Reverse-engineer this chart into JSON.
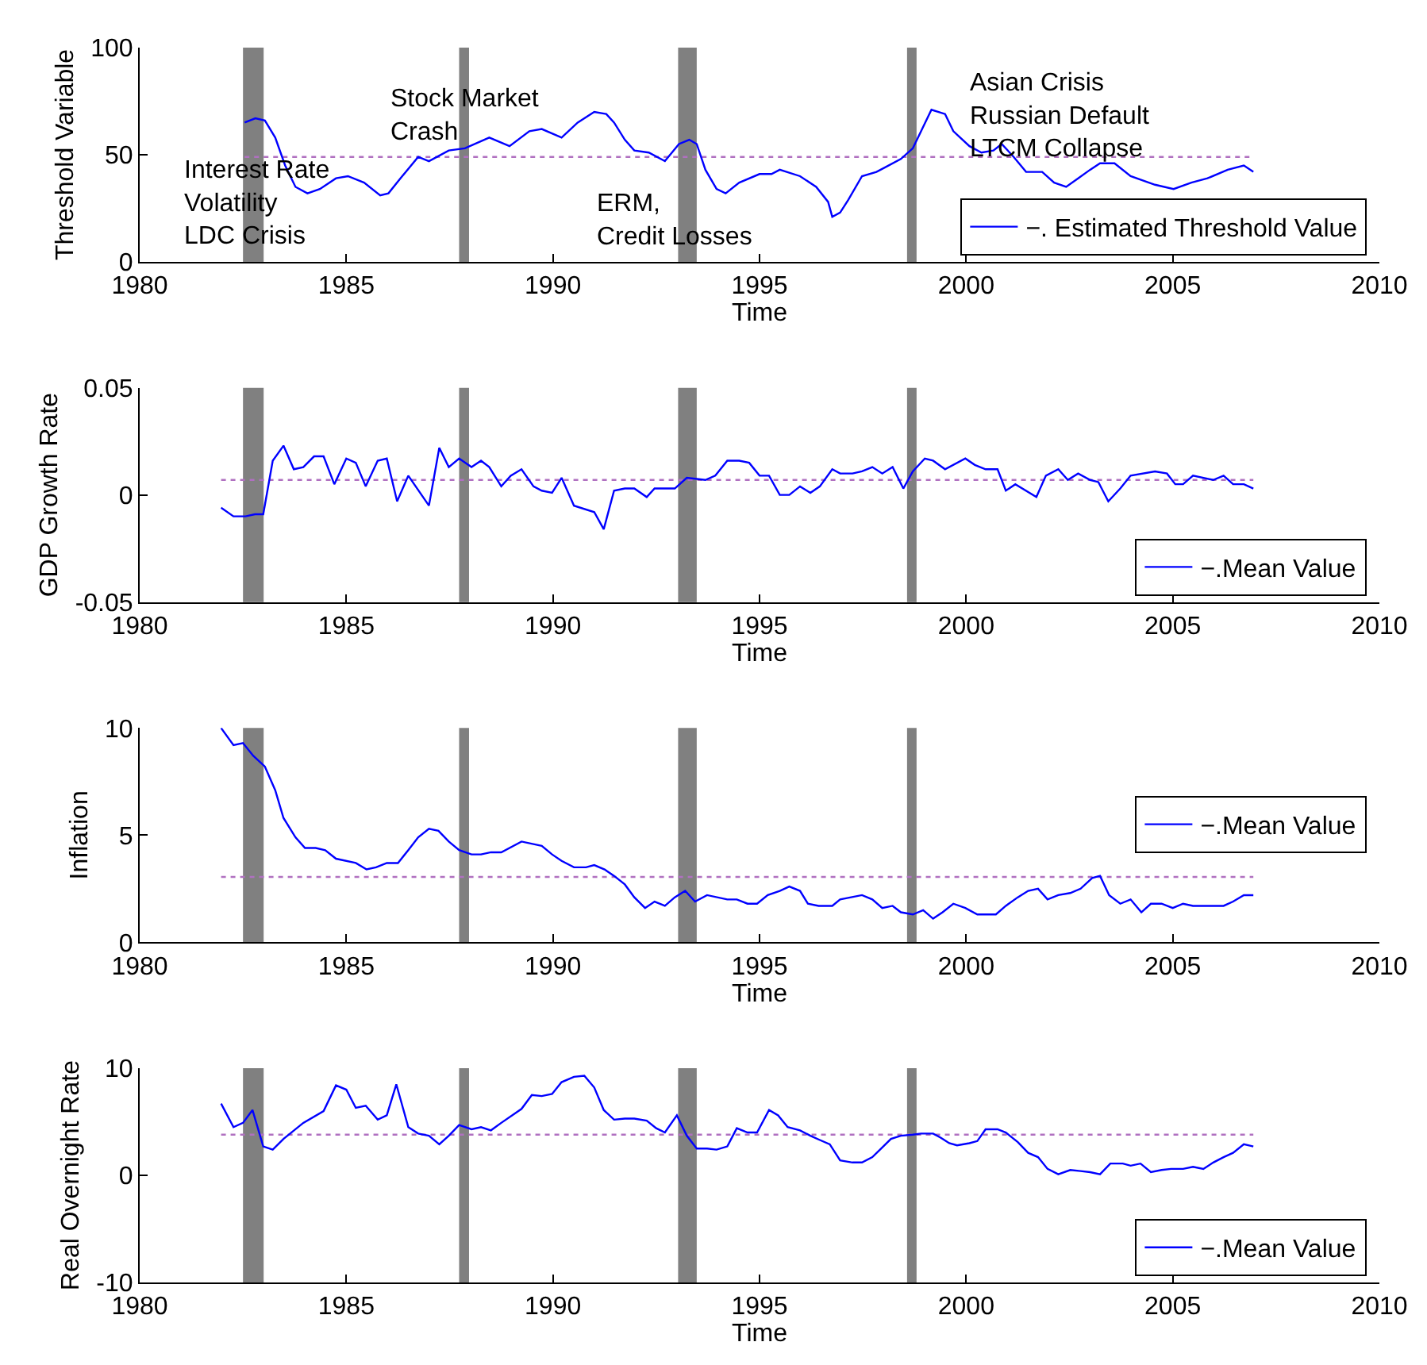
{
  "chart_data": [
    {
      "type": "line",
      "xlabel": "Time",
      "ylabel": "Threshold Variable",
      "xlim": [
        1980,
        2010
      ],
      "xticks": [
        1980,
        1985,
        1990,
        1995,
        2000,
        2005,
        2010
      ],
      "ylim": [
        0,
        100
      ],
      "yticks": [
        0,
        50,
        100
      ],
      "grid": false,
      "legend": "bottom right",
      "line_style": "solid",
      "series": [
        {
          "name": "−. Estimated Threshold Value",
          "color": "#0000ff",
          "x": [
            1982.54,
            1982.8,
            1983.03,
            1983.28,
            1983.52,
            1983.77,
            1984.06,
            1984.36,
            1984.75,
            1985.04,
            1985.43,
            1985.82,
            1986.02,
            1986.31,
            1986.74,
            1987.0,
            1987.48,
            1987.87,
            1988.46,
            1988.95,
            1989.43,
            1989.73,
            1990.21,
            1990.6,
            1991.0,
            1991.29,
            1991.48,
            1991.74,
            1991.97,
            1992.32,
            1992.71,
            1993.05,
            1993.3,
            1993.48,
            1993.69,
            1993.96,
            1994.18,
            1994.51,
            1995.0,
            1995.29,
            1995.49,
            1995.98,
            1996.37,
            1996.66,
            1996.76,
            1996.95,
            1997.15,
            1997.48,
            1997.83,
            1998.03,
            1998.42,
            1998.71,
            1998.91,
            1999.16,
            1999.49,
            1999.69,
            2000.08,
            2000.37,
            2000.66,
            2000.86,
            2001.15,
            2001.45,
            2001.84,
            2002.13,
            2002.42,
            2002.71,
            2003.0,
            2003.24,
            2003.59,
            2003.98,
            2004.57,
            2005.02,
            2005.45,
            2005.84,
            2006.33,
            2006.72,
            2006.95
          ],
          "values": [
            65,
            67,
            66,
            58,
            45,
            35,
            32,
            34,
            39,
            40,
            37,
            31,
            32,
            39,
            49,
            47,
            52,
            53,
            58,
            54,
            61,
            62,
            58,
            65,
            70,
            69,
            65,
            57,
            52,
            51,
            47,
            55,
            57,
            55,
            43,
            34,
            32,
            37,
            41,
            41,
            43,
            40,
            35,
            28,
            21,
            23,
            29,
            40,
            42,
            44,
            48,
            53,
            61,
            71,
            69,
            61,
            54,
            51,
            52,
            55,
            49,
            42,
            42,
            37,
            35,
            39,
            43,
            46,
            46,
            40,
            36,
            34,
            37,
            39,
            43,
            45,
            42
          ]
        }
      ],
      "ref_lines": [
        {
          "axis": "y",
          "value": 49,
          "color": "#b070c0",
          "line_style": "dotted"
        }
      ],
      "bands": [
        {
          "axis": "x",
          "from": 1982.5,
          "to": 1983.0,
          "color": "#808080"
        },
        {
          "axis": "x",
          "from": 1987.73,
          "to": 1987.97,
          "color": "#808080"
        },
        {
          "axis": "x",
          "from": 1993.03,
          "to": 1993.48,
          "color": "#808080"
        },
        {
          "axis": "x",
          "from": 1998.57,
          "to": 1998.8,
          "color": "#808080"
        }
      ],
      "annotations": [
        "Interest Rate\nVolatility\nLDC Crisis",
        "Stock Market\nCrash",
        "ERM,\nCredit Losses",
        "Asian Crisis\nRussian Default\nLTCM Collapse"
      ]
    },
    {
      "type": "line",
      "xlabel": "Time",
      "ylabel": "GDP Growth Rate",
      "xlim": [
        1980,
        2010
      ],
      "xticks": [
        1980,
        1985,
        1990,
        1995,
        2000,
        2005,
        2010
      ],
      "ylim": [
        -0.05,
        0.05
      ],
      "yticks": [
        -0.05,
        0,
        0.05
      ],
      "grid": false,
      "legend": "bottom right",
      "line_style": "solid",
      "series": [
        {
          "name": "−.Mean Value",
          "color": "#0000ff",
          "x": [
            1981.97,
            1982.27,
            1982.56,
            1982.79,
            1982.99,
            1983.22,
            1983.48,
            1983.73,
            1983.96,
            1984.22,
            1984.45,
            1984.71,
            1985.0,
            1985.23,
            1985.47,
            1985.76,
            1985.98,
            1986.23,
            1986.5,
            1987.0,
            1987.25,
            1987.48,
            1987.73,
            1988.03,
            1988.26,
            1988.46,
            1988.75,
            1988.98,
            1989.24,
            1989.53,
            1989.73,
            1989.98,
            1990.21,
            1990.51,
            1991.0,
            1991.23,
            1991.48,
            1991.74,
            1991.97,
            1992.27,
            1992.46,
            1992.95,
            1993.24,
            1993.69,
            1993.93,
            1994.22,
            1994.51,
            1994.75,
            1995.0,
            1995.23,
            1995.49,
            1995.72,
            1995.98,
            1996.23,
            1996.46,
            1996.76,
            1996.95,
            1997.25,
            1997.48,
            1997.73,
            1997.97,
            1998.22,
            1998.48,
            1998.71,
            1999.0,
            1999.2,
            1999.49,
            1999.98,
            2000.21,
            2000.47,
            2000.76,
            2000.96,
            2001.19,
            2001.7,
            2001.93,
            2002.23,
            2002.46,
            2002.71,
            2003.0,
            2003.2,
            2003.44,
            2003.73,
            2003.98,
            2004.57,
            2004.86,
            2005.06,
            2005.25,
            2005.49,
            2005.98,
            2006.23,
            2006.46,
            2006.72,
            2006.95
          ],
          "values": [
            -0.006,
            -0.01,
            -0.01,
            -0.009,
            -0.009,
            0.016,
            0.023,
            0.012,
            0.013,
            0.018,
            0.018,
            0.005,
            0.017,
            0.015,
            0.004,
            0.016,
            0.017,
            -0.003,
            0.009,
            -0.005,
            0.022,
            0.013,
            0.017,
            0.013,
            0.016,
            0.013,
            0.004,
            0.009,
            0.012,
            0.004,
            0.002,
            0.001,
            0.008,
            -0.005,
            -0.008,
            -0.016,
            0.002,
            0.003,
            0.003,
            -0.001,
            0.003,
            0.003,
            0.008,
            0.007,
            0.009,
            0.016,
            0.016,
            0.015,
            0.009,
            0.009,
            0.0,
            0.0,
            0.004,
            0.001,
            0.004,
            0.012,
            0.01,
            0.01,
            0.011,
            0.013,
            0.01,
            0.013,
            0.003,
            0.011,
            0.017,
            0.016,
            0.012,
            0.017,
            0.014,
            0.012,
            0.012,
            0.002,
            0.005,
            -0.001,
            0.009,
            0.012,
            0.007,
            0.01,
            0.007,
            0.006,
            -0.003,
            0.003,
            0.009,
            0.011,
            0.01,
            0.005,
            0.005,
            0.009,
            0.007,
            0.009,
            0.005,
            0.005,
            0.003
          ]
        }
      ],
      "ref_lines": [
        {
          "axis": "y",
          "value": 0.007,
          "color": "#b070c0",
          "line_style": "dotted"
        }
      ],
      "bands": [
        {
          "axis": "x",
          "from": 1982.5,
          "to": 1983.0,
          "color": "#808080"
        },
        {
          "axis": "x",
          "from": 1987.73,
          "to": 1987.97,
          "color": "#808080"
        },
        {
          "axis": "x",
          "from": 1993.03,
          "to": 1993.48,
          "color": "#808080"
        },
        {
          "axis": "x",
          "from": 1998.57,
          "to": 1998.8,
          "color": "#808080"
        }
      ]
    },
    {
      "type": "line",
      "xlabel": "Time",
      "ylabel": "Inflation",
      "xlim": [
        1980,
        2010
      ],
      "xticks": [
        1980,
        1985,
        1990,
        1995,
        2000,
        2005,
        2010
      ],
      "ylim": [
        0,
        10
      ],
      "yticks": [
        0,
        5,
        10
      ],
      "grid": false,
      "legend": "right",
      "line_style": "solid",
      "series": [
        {
          "name": "−.Mean Value",
          "color": "#0000ff",
          "x": [
            1981.97,
            1982.27,
            1982.5,
            1982.75,
            1983.03,
            1983.28,
            1983.48,
            1983.77,
            1984.0,
            1984.26,
            1984.49,
            1984.75,
            1985.23,
            1985.49,
            1985.72,
            1985.98,
            1986.25,
            1986.5,
            1986.74,
            1987.0,
            1987.23,
            1987.48,
            1987.73,
            1988.03,
            1988.26,
            1988.5,
            1988.75,
            1989.24,
            1989.73,
            1989.98,
            1990.21,
            1990.51,
            1990.8,
            1991.0,
            1991.25,
            1991.48,
            1991.74,
            1991.97,
            1992.23,
            1992.46,
            1992.71,
            1992.95,
            1993.2,
            1993.44,
            1993.73,
            1994.22,
            1994.45,
            1994.71,
            1994.94,
            1995.2,
            1995.49,
            1995.72,
            1995.98,
            1996.17,
            1996.43,
            1996.76,
            1996.95,
            1997.48,
            1997.73,
            1997.97,
            1998.22,
            1998.42,
            1998.71,
            1998.96,
            1999.2,
            1999.43,
            1999.69,
            1999.98,
            2000.27,
            2000.72,
            2000.96,
            2001.25,
            2001.5,
            2001.74,
            2001.97,
            2002.23,
            2002.52,
            2002.77,
            2003.05,
            2003.24,
            2003.46,
            2003.73,
            2003.98,
            2004.24,
            2004.47,
            2004.73,
            2005.0,
            2005.25,
            2005.49,
            2006.23,
            2006.46,
            2006.72,
            2006.95
          ],
          "values": [
            10,
            9.2,
            9.3,
            8.7,
            8.2,
            7.1,
            5.8,
            4.9,
            4.4,
            4.4,
            4.3,
            3.9,
            3.7,
            3.4,
            3.5,
            3.7,
            3.7,
            4.3,
            4.9,
            5.3,
            5.2,
            4.7,
            4.3,
            4.1,
            4.1,
            4.2,
            4.2,
            4.7,
            4.5,
            4.1,
            3.8,
            3.5,
            3.5,
            3.6,
            3.4,
            3.1,
            2.7,
            2.1,
            1.6,
            1.9,
            1.7,
            2.1,
            2.4,
            1.9,
            2.2,
            2.0,
            2.0,
            1.8,
            1.8,
            2.2,
            2.4,
            2.6,
            2.4,
            1.8,
            1.7,
            1.7,
            2.0,
            2.2,
            2.0,
            1.6,
            1.7,
            1.4,
            1.3,
            1.5,
            1.1,
            1.4,
            1.8,
            1.6,
            1.3,
            1.3,
            1.7,
            2.1,
            2.4,
            2.5,
            2.0,
            2.2,
            2.3,
            2.5,
            3.0,
            3.1,
            2.2,
            1.8,
            2.0,
            1.4,
            1.8,
            1.8,
            1.6,
            1.8,
            1.7,
            1.7,
            1.9,
            2.2,
            2.2
          ]
        }
      ],
      "ref_lines": [
        {
          "axis": "y",
          "value": 3.05,
          "color": "#b070c0",
          "line_style": "dotted"
        }
      ],
      "bands": [
        {
          "axis": "x",
          "from": 1982.5,
          "to": 1983.0,
          "color": "#808080"
        },
        {
          "axis": "x",
          "from": 1987.73,
          "to": 1987.97,
          "color": "#808080"
        },
        {
          "axis": "x",
          "from": 1993.03,
          "to": 1993.48,
          "color": "#808080"
        },
        {
          "axis": "x",
          "from": 1998.57,
          "to": 1998.8,
          "color": "#808080"
        }
      ]
    },
    {
      "type": "line",
      "xlabel": "Time",
      "ylabel": "Real Overnight Rate",
      "xlim": [
        1980,
        2010
      ],
      "xticks": [
        1980,
        1985,
        1990,
        1995,
        2000,
        2005,
        2010
      ],
      "ylim": [
        -10,
        10
      ],
      "yticks": [
        -10,
        0,
        10
      ],
      "grid": false,
      "legend": "bottom right",
      "line_style": "solid",
      "series": [
        {
          "name": "−.Mean Value",
          "color": "#0000ff",
          "x": [
            1981.97,
            1982.27,
            1982.5,
            1982.73,
            1982.99,
            1983.22,
            1983.48,
            1983.96,
            1984.45,
            1984.75,
            1985.0,
            1985.23,
            1985.47,
            1985.76,
            1985.98,
            1986.21,
            1986.5,
            1986.74,
            1987.0,
            1987.25,
            1987.48,
            1987.73,
            1988.03,
            1988.26,
            1988.5,
            1988.75,
            1989.24,
            1989.49,
            1989.73,
            1989.98,
            1990.21,
            1990.51,
            1990.76,
            1991.0,
            1991.23,
            1991.48,
            1991.74,
            1991.97,
            1992.27,
            1992.5,
            1992.71,
            1993.0,
            1993.24,
            1993.48,
            1993.73,
            1993.96,
            1994.22,
            1994.45,
            1994.71,
            1994.94,
            1995.23,
            1995.45,
            1995.68,
            1995.98,
            1996.23,
            1996.46,
            1996.7,
            1996.95,
            1997.25,
            1997.48,
            1997.73,
            1997.97,
            1998.18,
            1998.42,
            1998.71,
            1998.91,
            1999.2,
            1999.39,
            1999.59,
            1999.78,
            2000.08,
            2000.27,
            2000.47,
            2000.76,
            2000.96,
            2001.25,
            2001.5,
            2001.74,
            2001.97,
            2002.23,
            2002.52,
            2002.77,
            2003.0,
            2003.24,
            2003.49,
            2003.79,
            2003.98,
            2004.22,
            2004.47,
            2004.73,
            2004.96,
            2005.25,
            2005.49,
            2005.74,
            2005.98,
            2006.23,
            2006.46,
            2006.72,
            2006.95
          ],
          "values": [
            6.7,
            4.5,
            4.9,
            6.1,
            2.7,
            2.4,
            3.4,
            4.9,
            6.0,
            8.4,
            8.0,
            6.3,
            6.5,
            5.2,
            5.6,
            8.5,
            4.5,
            3.9,
            3.7,
            2.9,
            3.7,
            4.7,
            4.3,
            4.5,
            4.2,
            4.9,
            6.2,
            7.5,
            7.4,
            7.6,
            8.7,
            9.2,
            9.3,
            8.2,
            6.1,
            5.2,
            5.3,
            5.3,
            5.1,
            4.4,
            4.0,
            5.6,
            3.7,
            2.5,
            2.5,
            2.4,
            2.7,
            4.4,
            4.0,
            4.0,
            6.1,
            5.6,
            4.5,
            4.2,
            3.7,
            3.3,
            2.9,
            1.4,
            1.2,
            1.2,
            1.7,
            2.6,
            3.4,
            3.7,
            3.8,
            3.9,
            3.9,
            3.5,
            3.0,
            2.8,
            3.0,
            3.2,
            4.3,
            4.3,
            4.0,
            3.1,
            2.1,
            1.7,
            0.6,
            0.1,
            0.5,
            0.4,
            0.3,
            0.1,
            1.1,
            1.1,
            0.9,
            1.1,
            0.3,
            0.5,
            0.6,
            0.6,
            0.8,
            0.6,
            1.2,
            1.7,
            2.1,
            2.9,
            2.7
          ]
        }
      ],
      "ref_lines": [
        {
          "axis": "y",
          "value": 3.8,
          "color": "#b070c0",
          "line_style": "dotted"
        }
      ],
      "bands": [
        {
          "axis": "x",
          "from": 1982.5,
          "to": 1983.0,
          "color": "#808080"
        },
        {
          "axis": "x",
          "from": 1987.73,
          "to": 1987.97,
          "color": "#808080"
        },
        {
          "axis": "x",
          "from": 1993.03,
          "to": 1993.48,
          "color": "#808080"
        },
        {
          "axis": "x",
          "from": 1998.57,
          "to": 1998.8,
          "color": "#808080"
        }
      ]
    }
  ]
}
